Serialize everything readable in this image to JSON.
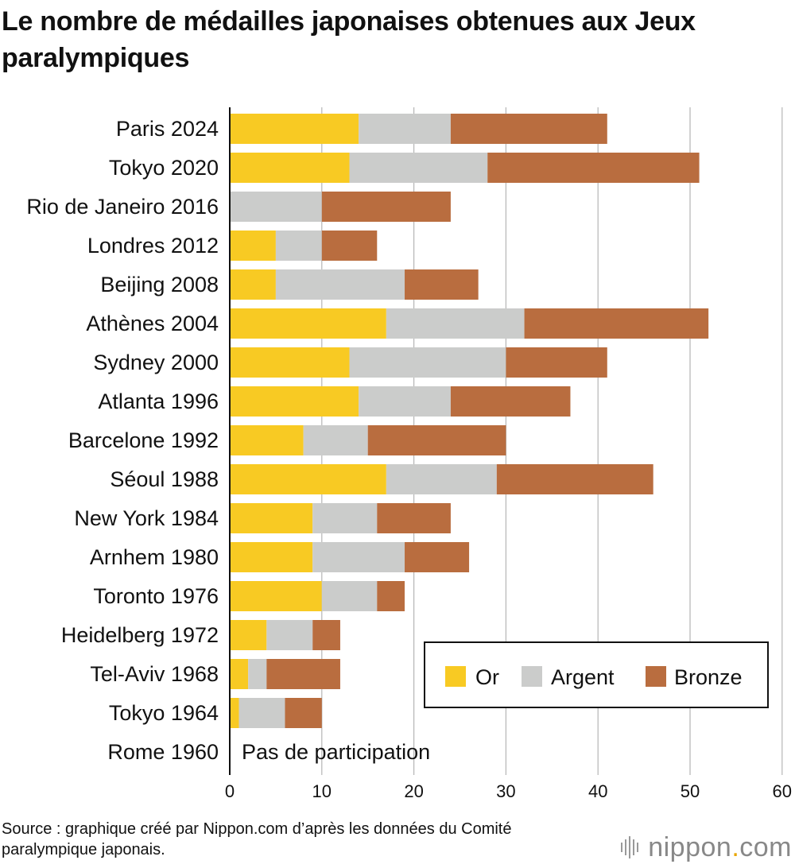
{
  "title": "Le nombre de médailles japonaises obtenues aux Jeux paralympiques",
  "source": "Source : graphique créé par Nippon.com d’après les données du Comité paralympique japonais.",
  "logo": {
    "text_before": "nippon",
    "dot": ".",
    "text_after": "com"
  },
  "colors": {
    "gold": "#F8CA23",
    "silver": "#CBCCCB",
    "bronze": "#B96D3F"
  },
  "chart_data": {
    "type": "bar",
    "orientation": "horizontal",
    "stacked": true,
    "categories": [
      "Paris 2024",
      "Tokyo 2020",
      "Rio de Janeiro 2016",
      "Londres 2012",
      "Beijing 2008",
      "Athènes 2004",
      "Sydney 2000",
      "Atlanta 1996",
      "Barcelone 1992",
      "Séoul 1988",
      "New York 1984",
      "Arnhem 1980",
      "Toronto 1976",
      "Heidelberg 1972",
      "Tel-Aviv 1968",
      "Tokyo 1964",
      "Rome 1960"
    ],
    "series": [
      {
        "name": "Or",
        "color": "#F8CA23",
        "values": [
          14,
          13,
          0,
          5,
          5,
          17,
          13,
          14,
          8,
          17,
          9,
          9,
          10,
          4,
          2,
          1,
          0
        ]
      },
      {
        "name": "Argent",
        "color": "#CBCCCB",
        "values": [
          10,
          15,
          10,
          5,
          14,
          15,
          17,
          10,
          7,
          12,
          7,
          10,
          6,
          5,
          2,
          5,
          0
        ]
      },
      {
        "name": "Bronze",
        "color": "#B96D3F",
        "values": [
          17,
          23,
          14,
          6,
          8,
          20,
          11,
          13,
          15,
          17,
          8,
          7,
          3,
          3,
          8,
          4,
          0
        ]
      }
    ],
    "xlim": [
      0,
      60
    ],
    "xticks": [
      0,
      10,
      20,
      30,
      40,
      50,
      60
    ],
    "grid": "vertical",
    "legend": "bottom-right",
    "annotation": {
      "category": "Rome 1960",
      "text": "Pas de participation"
    }
  }
}
